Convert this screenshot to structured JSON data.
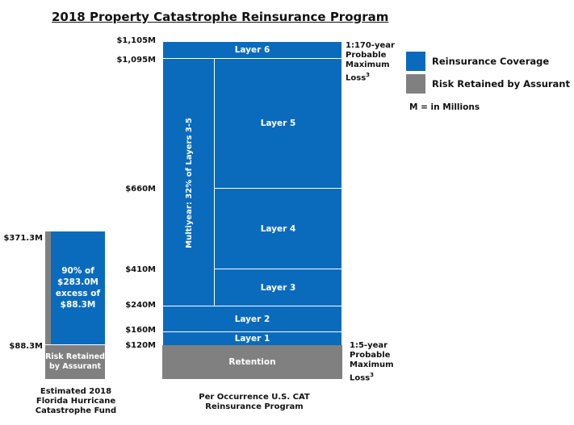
{
  "title": "2018 Property Catastrophe Reinsurance Program",
  "program": {
    "caption": [
      "Per Occurrence U.S. CAT",
      "Reinsurance Program"
    ],
    "ticks": [
      "$1,105M",
      "$1,095M",
      "$660M",
      "$410M",
      "$240M",
      "$160M",
      "$120M"
    ],
    "layers": {
      "layer6": "Layer 6",
      "layer5": "Layer 5",
      "layer4": "Layer 4",
      "layer3": "Layer 3",
      "layer2": "Layer 2",
      "layer1": "Layer 1",
      "retention": "Retention",
      "multiyear": "Multiyear: 32% of Layers 3-5"
    },
    "pml_top": [
      "1:170-year",
      "Probable",
      "Maximum",
      "Loss"
    ],
    "pml_top_sup": "3",
    "pml_bottom": [
      "1:5-year",
      "Probable",
      "Maximum",
      "Loss"
    ],
    "pml_bottom_sup": "3"
  },
  "fhcf": {
    "ticks": [
      "$371.3M",
      "$88.3M"
    ],
    "coverage": [
      "90% of",
      "$283.0M",
      "excess of",
      "$88.3M"
    ],
    "retained": [
      "Risk Retained",
      "by Assurant"
    ],
    "caption": [
      "Estimated 2018",
      "Florida Hurricane",
      "Catastrophe Fund"
    ]
  },
  "legend": {
    "coverage": "Reinsurance Coverage",
    "retained": "Risk Retained by Assurant",
    "note": "M = in Millions",
    "colors": {
      "coverage": "#0a6bbd",
      "retained": "#808080"
    }
  }
}
